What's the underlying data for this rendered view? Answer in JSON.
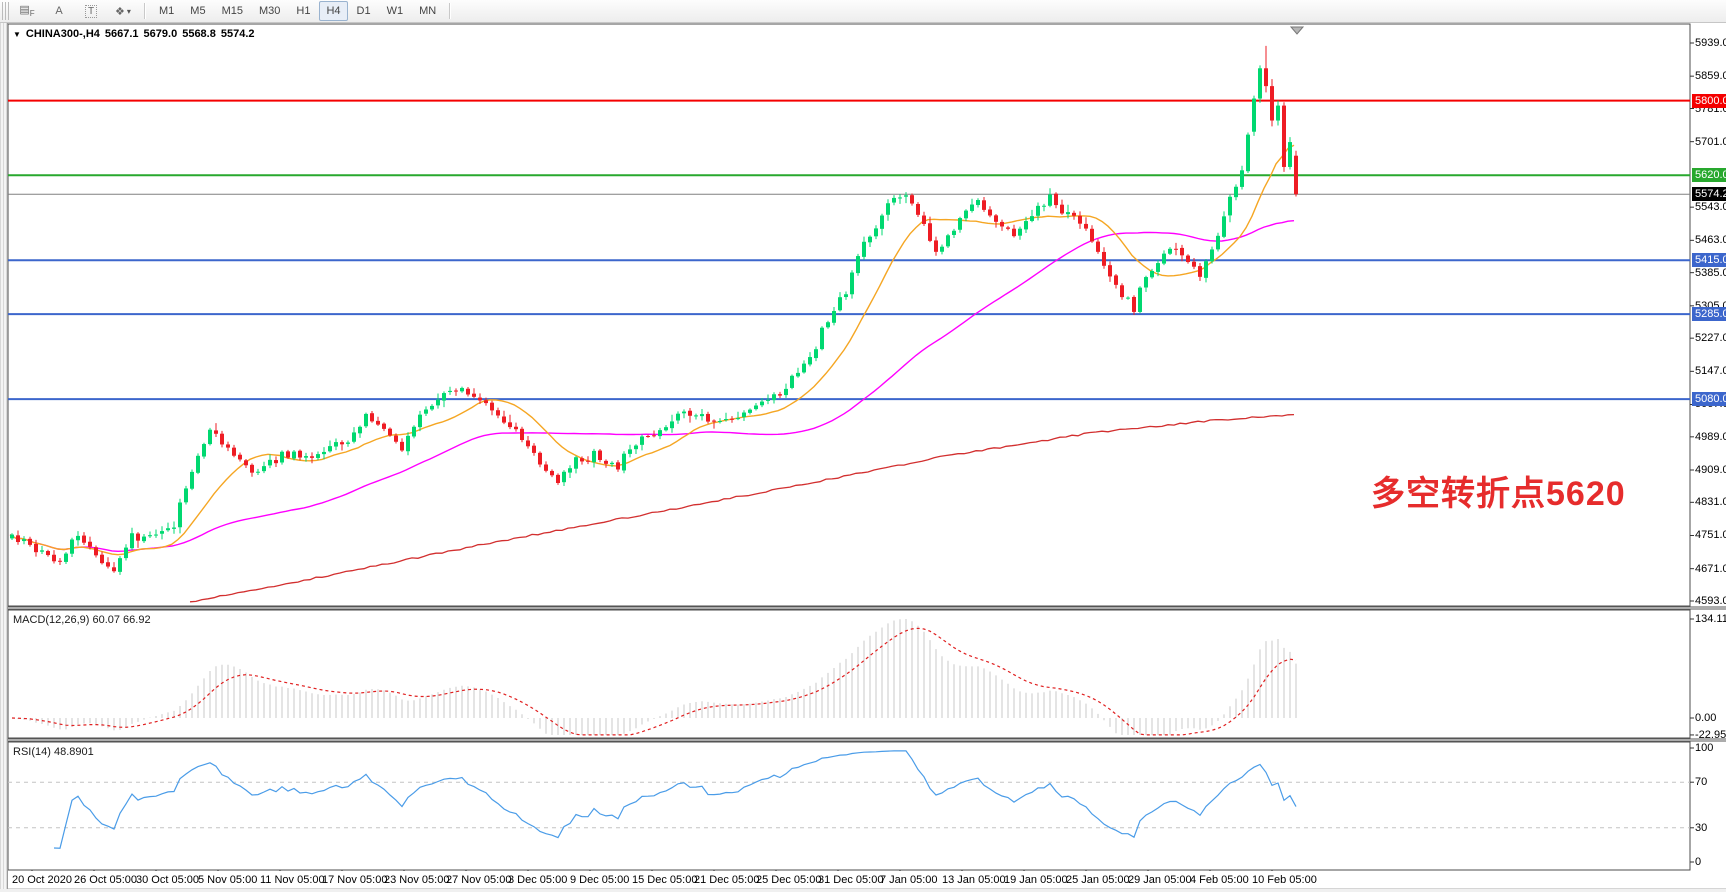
{
  "toolbar": {
    "tools": [
      {
        "name": "bars-grid-f-icon",
        "glyph": "▤",
        "sub": "F"
      },
      {
        "name": "font-a-icon",
        "glyph": "A"
      },
      {
        "name": "text-label-icon",
        "glyph": "T"
      },
      {
        "name": "colors-cycle-icon",
        "glyph": "❖",
        "caret": "▾"
      }
    ],
    "timeframes": [
      "M1",
      "M5",
      "M15",
      "M30",
      "H1",
      "H4",
      "D1",
      "W1",
      "MN"
    ],
    "active_timeframe": "H4"
  },
  "chart": {
    "title": {
      "symbol": "CHINA300-,H4",
      "open": "5667.1",
      "high": "5679.0",
      "low": "5568.8",
      "close": "5574.2"
    },
    "annotation": {
      "text": "多空转折点5620",
      "color": "#e62c2c"
    }
  },
  "price_axis": {
    "ticks": [
      {
        "label": "5939.0",
        "price": 5939
      },
      {
        "label": "5859.0",
        "price": 5859
      },
      {
        "label": "5781.0",
        "price": 5781
      },
      {
        "label": "5701.0",
        "price": 5701
      },
      {
        "label": "5543.0",
        "price": 5543
      },
      {
        "label": "5463.0",
        "price": 5463
      },
      {
        "label": "5385.0",
        "price": 5385
      },
      {
        "label": "5305.0",
        "price": 5305
      },
      {
        "label": "5227.0",
        "price": 5227
      },
      {
        "label": "5147.0",
        "price": 5147
      },
      {
        "label": "5067.0",
        "price": 5067
      },
      {
        "label": "4989.0",
        "price": 4989
      },
      {
        "label": "4909.0",
        "price": 4909
      },
      {
        "label": "4831.0",
        "price": 4831
      },
      {
        "label": "4751.0",
        "price": 4751
      },
      {
        "label": "4671.0",
        "price": 4671
      },
      {
        "label": "4593.0",
        "price": 4593
      }
    ]
  },
  "hlines": [
    {
      "name": "resistance-5800",
      "price": 5800,
      "color": "#f50000",
      "width": 2,
      "badge": "5800.0",
      "badge_bg": "#f50000"
    },
    {
      "name": "pivot-5620",
      "price": 5620,
      "color": "#28a82e",
      "width": 2,
      "badge": "5620.0",
      "badge_bg": "#28a82e"
    },
    {
      "name": "current-price",
      "price": 5574.2,
      "color": "#808080",
      "width": 1,
      "badge": "5574.2",
      "badge_bg": "#000000"
    },
    {
      "name": "support-5415",
      "price": 5415,
      "color": "#3c66cc",
      "width": 2,
      "badge": "5415.0",
      "badge_bg": "#3c66cc"
    },
    {
      "name": "support-5285",
      "price": 5285,
      "color": "#3c66cc",
      "width": 2,
      "badge": "5285.0",
      "badge_bg": "#3c66cc"
    },
    {
      "name": "support-5080",
      "price": 5080,
      "color": "#3c66cc",
      "width": 2,
      "badge": "5080.0",
      "badge_bg": "#3c66cc"
    }
  ],
  "macd_panel": {
    "label": "MACD(12,26,9) 60.07 66.92",
    "axis_ticks": [
      {
        "label": "134.11",
        "value": 134.11
      },
      {
        "label": "0.00",
        "value": 0
      },
      {
        "label": "-22.95",
        "value": -22.95
      }
    ]
  },
  "rsi_panel": {
    "label": "RSI(14) 48.8901",
    "axis_ticks": [
      {
        "label": "100",
        "value": 100
      },
      {
        "label": "70",
        "value": 70
      },
      {
        "label": "30",
        "value": 30
      },
      {
        "label": "0",
        "value": 0
      }
    ],
    "levels": [
      70,
      30
    ]
  },
  "date_axis": {
    "labels": [
      "20 Oct 2020",
      "26 Oct 05:00",
      "30 Oct 05:00",
      "5 Nov 05:00",
      "11 Nov 05:00",
      "17 Nov 05:00",
      "23 Nov 05:00",
      "27 Nov 05:00",
      "3 Dec 05:00",
      "9 Dec 05:00",
      "15 Dec 05:00",
      "21 Dec 05:00",
      "25 Dec 05:00",
      "31 Dec 05:00",
      "7 Jan 05:00",
      "13 Jan 05:00",
      "19 Jan 05:00",
      "25 Jan 05:00",
      "29 Jan 05:00",
      "4 Feb 05:00",
      "10 Feb 05:00"
    ]
  },
  "chart_data": {
    "type": "candlestick",
    "symbol": "CHINA300",
    "timeframe": "H4",
    "current_bar_ohlc": [
      5667.1,
      5679.0,
      5568.8,
      5574.2
    ],
    "ylim": [
      4593,
      5939
    ],
    "bar_count": 215,
    "seed": 77,
    "colors": {
      "up": "#00d870",
      "down": "#ee1c24",
      "ma_fast": "#f5a623",
      "ma_mid": "#ff00ff",
      "ma_long": "#d22f2f",
      "macd_hist": "#c9c9c9",
      "macd_signal": "#e02020",
      "rsi": "#4a9ce8"
    },
    "close_anchors": [
      [
        0.0,
        4755
      ],
      [
        0.02,
        4720
      ],
      [
        0.035,
        4682
      ],
      [
        0.05,
        4748
      ],
      [
        0.065,
        4705
      ],
      [
        0.08,
        4675
      ],
      [
        0.095,
        4745
      ],
      [
        0.11,
        4762
      ],
      [
        0.125,
        4782
      ],
      [
        0.14,
        4905
      ],
      [
        0.155,
        5012
      ],
      [
        0.17,
        4958
      ],
      [
        0.185,
        4905
      ],
      [
        0.2,
        4932
      ],
      [
        0.215,
        4948
      ],
      [
        0.23,
        4935
      ],
      [
        0.245,
        4958
      ],
      [
        0.26,
        4978
      ],
      [
        0.275,
        5038
      ],
      [
        0.29,
        5012
      ],
      [
        0.305,
        4955
      ],
      [
        0.32,
        5042
      ],
      [
        0.335,
        5092
      ],
      [
        0.35,
        5108
      ],
      [
        0.365,
        5088
      ],
      [
        0.38,
        5042
      ],
      [
        0.395,
        4992
      ],
      [
        0.41,
        4918
      ],
      [
        0.425,
        4882
      ],
      [
        0.44,
        4928
      ],
      [
        0.455,
        4948
      ],
      [
        0.47,
        4922
      ],
      [
        0.485,
        4978
      ],
      [
        0.5,
        5002
      ],
      [
        0.515,
        5032
      ],
      [
        0.53,
        5048
      ],
      [
        0.545,
        5018
      ],
      [
        0.56,
        5038
      ],
      [
        0.575,
        5062
      ],
      [
        0.59,
        5072
      ],
      [
        0.605,
        5112
      ],
      [
        0.62,
        5182
      ],
      [
        0.635,
        5272
      ],
      [
        0.65,
        5342
      ],
      [
        0.665,
        5452
      ],
      [
        0.68,
        5542
      ],
      [
        0.69,
        5578
      ],
      [
        0.7,
        5562
      ],
      [
        0.71,
        5492
      ],
      [
        0.72,
        5432
      ],
      [
        0.735,
        5488
      ],
      [
        0.75,
        5558
      ],
      [
        0.765,
        5508
      ],
      [
        0.78,
        5468
      ],
      [
        0.795,
        5528
      ],
      [
        0.81,
        5568
      ],
      [
        0.82,
        5538
      ],
      [
        0.835,
        5492
      ],
      [
        0.848,
        5428
      ],
      [
        0.86,
        5352
      ],
      [
        0.872,
        5295
      ],
      [
        0.885,
        5382
      ],
      [
        0.9,
        5448
      ],
      [
        0.912,
        5432
      ],
      [
        0.924,
        5372
      ],
      [
        0.936,
        5448
      ],
      [
        0.948,
        5558
      ],
      [
        0.956,
        5642
      ],
      [
        0.963,
        5725
      ]
    ],
    "explicit_last_bars": [
      [
        5725,
        5812,
        5715,
        5805
      ],
      [
        5805,
        5885,
        5795,
        5878
      ],
      [
        5878,
        5932,
        5820,
        5835
      ],
      [
        5835,
        5852,
        5738,
        5752
      ],
      [
        5752,
        5800,
        5740,
        5788
      ],
      [
        5788,
        5796,
        5628,
        5640
      ],
      [
        5640,
        5712,
        5634,
        5700
      ],
      [
        5667.1,
        5679.0,
        5568.8,
        5574.2
      ]
    ],
    "moving_averages": [
      {
        "name": "fast",
        "period": 13
      },
      {
        "name": "mid",
        "period": 50
      },
      {
        "name": "long",
        "anchors": [
          [
            30,
            4590
          ],
          [
            55,
            4660
          ],
          [
            80,
            4733
          ],
          [
            105,
            4800
          ],
          [
            130,
            4868
          ],
          [
            155,
            4940
          ],
          [
            180,
            4998
          ],
          [
            200,
            5028
          ],
          [
            214,
            5042
          ]
        ]
      }
    ],
    "indicators": {
      "macd": {
        "params": [
          12,
          26,
          9
        ],
        "current_main": 60.07,
        "current_signal": 66.92,
        "max": 134.11,
        "min": -22.95
      },
      "rsi": {
        "period": 14,
        "current": 48.8901,
        "levels": [
          70,
          30
        ]
      }
    }
  }
}
